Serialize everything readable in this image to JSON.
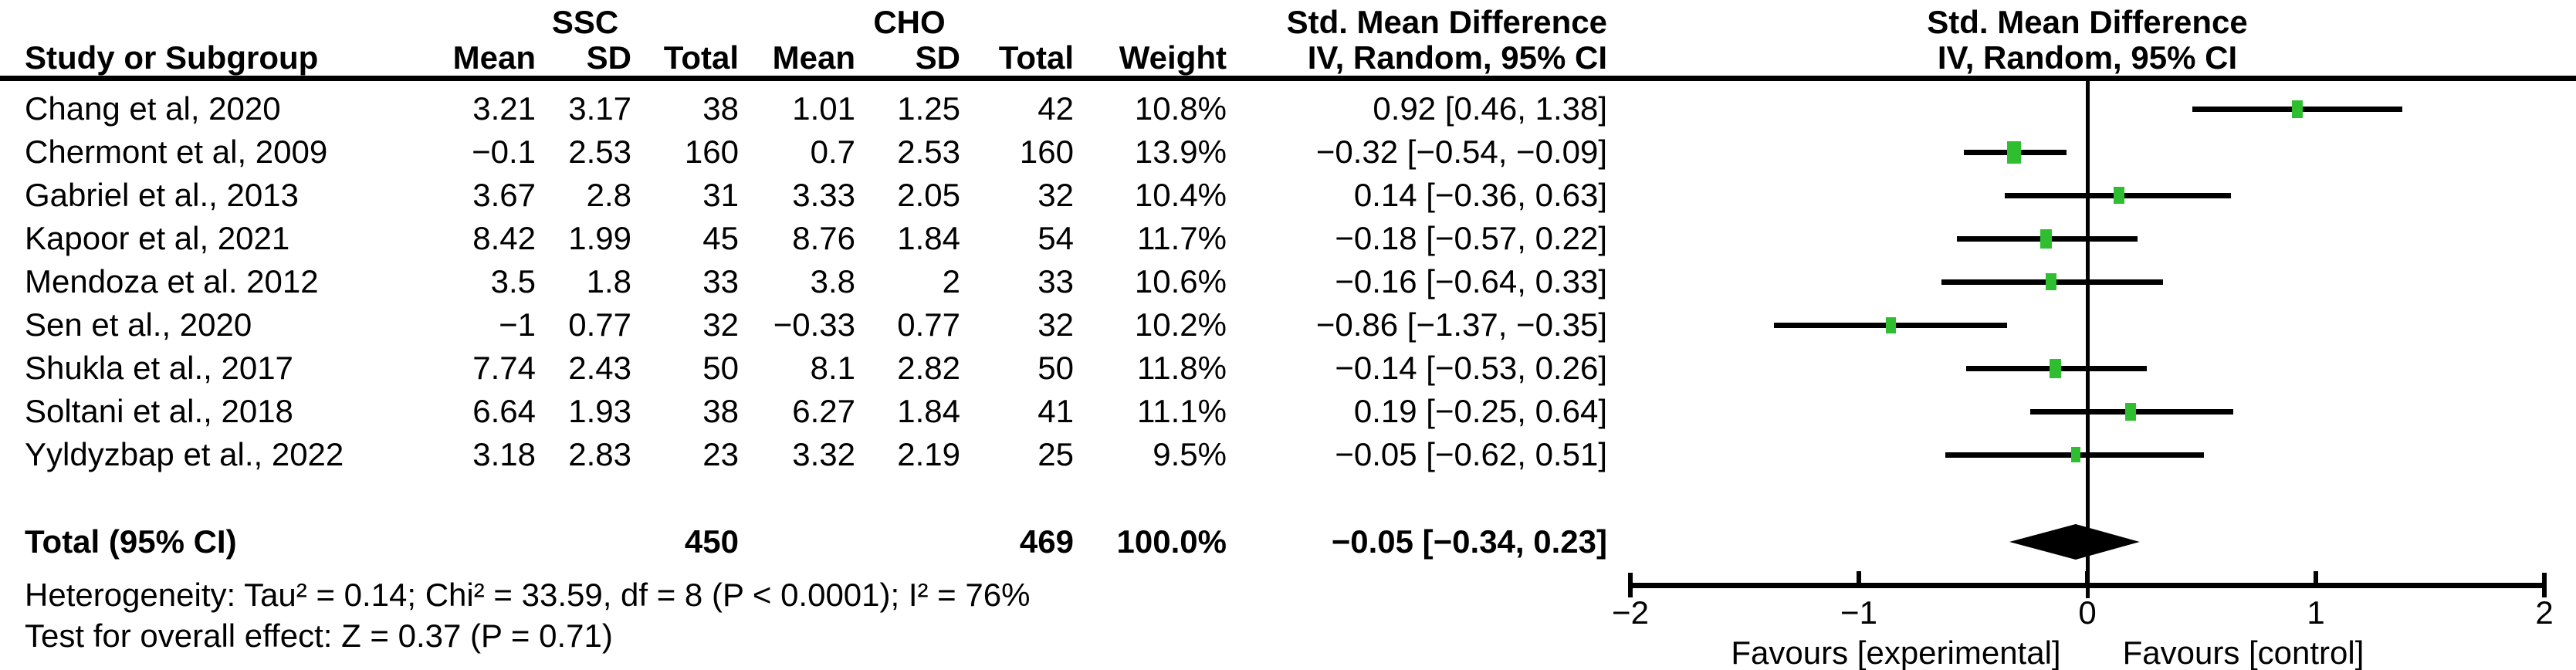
{
  "header": {
    "col_study": "Study or Subgroup",
    "group1": "SSC",
    "group2": "CHO",
    "col_mean1": "Mean",
    "col_sd1": "SD",
    "col_total1": "Total",
    "col_mean2": "Mean",
    "col_sd2": "SD",
    "col_total2": "Total",
    "col_weight": "Weight",
    "effect_title": "Std. Mean Difference",
    "effect_subtitle": "IV, Random, 95% CI",
    "plot_title": "Std. Mean Difference",
    "plot_subtitle": "IV, Random, 95% CI"
  },
  "chart_data": {
    "type": "forest",
    "effect_measure": "Std. Mean Difference",
    "model": "IV, Random, 95% CI",
    "group1_label": "SSC",
    "group2_label": "CHO",
    "studies": [
      {
        "name": "Chang et al, 2020",
        "mean1": "3.21",
        "sd1": "3.17",
        "total1": "38",
        "mean2": "1.01",
        "sd2": "1.25",
        "total2": "42",
        "weight": "10.8%",
        "weight_value": 10.8,
        "est": 0.92,
        "lo": 0.46,
        "hi": 1.38,
        "ci_text": "0.92 [0.46, 1.38]"
      },
      {
        "name": "Chermont et al, 2009",
        "mean1": "−0.1",
        "sd1": "2.53",
        "total1": "160",
        "mean2": "0.7",
        "sd2": "2.53",
        "total2": "160",
        "weight": "13.9%",
        "weight_value": 13.9,
        "est": -0.32,
        "lo": -0.54,
        "hi": -0.09,
        "ci_text": "−0.32 [−0.54, −0.09]"
      },
      {
        "name": "Gabriel et al., 2013",
        "mean1": "3.67",
        "sd1": "2.8",
        "total1": "31",
        "mean2": "3.33",
        "sd2": "2.05",
        "total2": "32",
        "weight": "10.4%",
        "weight_value": 10.4,
        "est": 0.14,
        "lo": -0.36,
        "hi": 0.63,
        "ci_text": "0.14 [−0.36, 0.63]"
      },
      {
        "name": "Kapoor et al, 2021",
        "mean1": "8.42",
        "sd1": "1.99",
        "total1": "45",
        "mean2": "8.76",
        "sd2": "1.84",
        "total2": "54",
        "weight": "11.7%",
        "weight_value": 11.7,
        "est": -0.18,
        "lo": -0.57,
        "hi": 0.22,
        "ci_text": "−0.18 [−0.57, 0.22]"
      },
      {
        "name": "Mendoza et al. 2012",
        "mean1": "3.5",
        "sd1": "1.8",
        "total1": "33",
        "mean2": "3.8",
        "sd2": "2",
        "total2": "33",
        "weight": "10.6%",
        "weight_value": 10.6,
        "est": -0.16,
        "lo": -0.64,
        "hi": 0.33,
        "ci_text": "−0.16 [−0.64, 0.33]"
      },
      {
        "name": "Sen et al., 2020",
        "mean1": "−1",
        "sd1": "0.77",
        "total1": "32",
        "mean2": "−0.33",
        "sd2": "0.77",
        "total2": "32",
        "weight": "10.2%",
        "weight_value": 10.2,
        "est": -0.86,
        "lo": -1.37,
        "hi": -0.35,
        "ci_text": "−0.86 [−1.37, −0.35]"
      },
      {
        "name": "Shukla et al., 2017",
        "mean1": "7.74",
        "sd1": "2.43",
        "total1": "50",
        "mean2": "8.1",
        "sd2": "2.82",
        "total2": "50",
        "weight": "11.8%",
        "weight_value": 11.8,
        "est": -0.14,
        "lo": -0.53,
        "hi": 0.26,
        "ci_text": "−0.14 [−0.53, 0.26]"
      },
      {
        "name": "Soltani et al., 2018",
        "mean1": "6.64",
        "sd1": "1.93",
        "total1": "38",
        "mean2": "6.27",
        "sd2": "1.84",
        "total2": "41",
        "weight": "11.1%",
        "weight_value": 11.1,
        "est": 0.19,
        "lo": -0.25,
        "hi": 0.64,
        "ci_text": "0.19 [−0.25, 0.64]"
      },
      {
        "name": "Yyldyzbap et al., 2022",
        "mean1": "3.18",
        "sd1": "2.83",
        "total1": "23",
        "mean2": "3.32",
        "sd2": "2.19",
        "total2": "25",
        "weight": "9.5%",
        "weight_value": 9.5,
        "est": -0.05,
        "lo": -0.62,
        "hi": 0.51,
        "ci_text": "−0.05 [−0.62, 0.51]"
      }
    ],
    "total": {
      "label": "Total (95% CI)",
      "total1": "450",
      "total2": "469",
      "weight": "100.0%",
      "est": -0.05,
      "lo": -0.34,
      "hi": 0.23,
      "ci_text": "−0.05 [−0.34, 0.23]"
    },
    "heterogeneity": "Heterogeneity: Tau² = 0.14; Chi² = 33.59, df = 8 (P < 0.0001); I² = 76%",
    "overall_effect": "Test for overall effect: Z = 0.37 (P = 0.71)",
    "axis": {
      "min": -2,
      "max": 2,
      "tick_values": [
        -2,
        -1,
        0,
        1,
        2
      ],
      "tick_labels": [
        "−2",
        "−1",
        "0",
        "1",
        "2"
      ],
      "favours_left": "Favours [experimental]",
      "favours_right": "Favours [control]"
    },
    "colors": {
      "marker": "#2FBE2F",
      "line": "#000000",
      "diamond": "#000000"
    }
  }
}
